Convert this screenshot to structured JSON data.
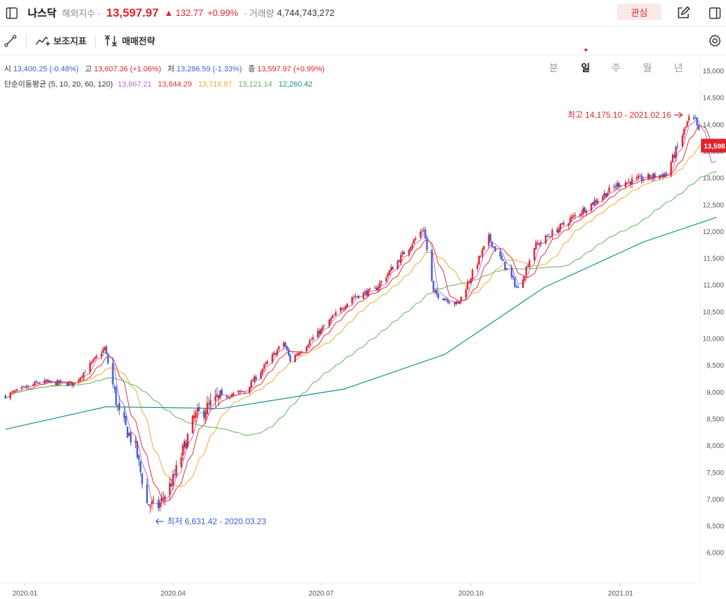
{
  "header": {
    "name": "나스닥",
    "subtitle": "해외지수 ·",
    "price": "13,597.97",
    "change": "▲ 132.77",
    "change_pct": "+0.99%",
    "volume_label": "· 거래량",
    "volume": "4,744,743,272",
    "favorite_label": "관심"
  },
  "toolbar": {
    "indicator_label": "보조지표",
    "strategy_label": "매매전략",
    "periods": [
      "분",
      "일",
      "주",
      "월",
      "년"
    ],
    "active_period": "일"
  },
  "ohlc": {
    "open_label": "시",
    "open": "13,400.25 (-0.48%)",
    "high_label": "고",
    "high": "13,607.36 (+1.06%)",
    "low_label": "저",
    "low": "13,286.59 (-1.33%)",
    "close_label": "종",
    "close": "13,597.97 (+0.99%)"
  },
  "ma": {
    "label": "단순이동평균 (5, 10, 20, 60, 120)",
    "values": [
      "13,667.21",
      "13,844.29",
      "13,718.87",
      "13,121.14",
      "12,260.42"
    ],
    "colors": [
      "#b46cd6",
      "#e0342f",
      "#f0a636",
      "#5cb55c",
      "#17918f"
    ]
  },
  "colors": {
    "up": "#e0242f",
    "down": "#3d5fd6"
  },
  "annotations": {
    "max": "최고 14,175.10 - 2021.02.16",
    "min": "최저 6,631.42 - 2020.03.23"
  },
  "current_price_tag": "13,598",
  "chart_data": {
    "type": "candlestick",
    "y_ticks": [
      "15,000",
      "14,500",
      "14,000",
      "13,500",
      "13,000",
      "12,500",
      "12,000",
      "11,500",
      "11,000",
      "10,500",
      "10,000",
      "9,500",
      "9,000",
      "8,500",
      "8,000",
      "7,500",
      "7,000",
      "6,500",
      "6,000"
    ],
    "x_ticks": [
      "2020.01",
      "2020.04",
      "2020.07",
      "2020.10",
      "2021.01"
    ],
    "ylim": [
      5600,
      15200
    ],
    "close_path": [
      {
        "d": "2019-12-20",
        "v": 8925
      },
      {
        "d": "2020-01-10",
        "v": 9180
      },
      {
        "d": "2020-01-31",
        "v": 9150
      },
      {
        "d": "2020-02-19",
        "v": 9817
      },
      {
        "d": "2020-02-28",
        "v": 8567
      },
      {
        "d": "2020-03-09",
        "v": 7950
      },
      {
        "d": "2020-03-16",
        "v": 6904
      },
      {
        "d": "2020-03-23",
        "v": 6860
      },
      {
        "d": "2020-04-01",
        "v": 7360
      },
      {
        "d": "2020-04-14",
        "v": 8515
      },
      {
        "d": "2020-04-30",
        "v": 8890
      },
      {
        "d": "2020-05-15",
        "v": 9015
      },
      {
        "d": "2020-06-08",
        "v": 9924
      },
      {
        "d": "2020-06-12",
        "v": 9588
      },
      {
        "d": "2020-07-01",
        "v": 10155
      },
      {
        "d": "2020-07-20",
        "v": 10767
      },
      {
        "d": "2020-08-03",
        "v": 10902
      },
      {
        "d": "2020-09-02",
        "v": 12056
      },
      {
        "d": "2020-09-08",
        "v": 10847
      },
      {
        "d": "2020-09-23",
        "v": 10633
      },
      {
        "d": "2020-10-12",
        "v": 11876
      },
      {
        "d": "2020-10-30",
        "v": 10911
      },
      {
        "d": "2020-11-09",
        "v": 11713
      },
      {
        "d": "2020-11-30",
        "v": 12198
      },
      {
        "d": "2020-12-31",
        "v": 12888
      },
      {
        "d": "2021-01-29",
        "v": 13070
      },
      {
        "d": "2021-02-12",
        "v": 14095
      },
      {
        "d": "2021-02-16",
        "v": 14047
      },
      {
        "d": "2021-02-25",
        "v": 13119
      },
      {
        "d": "2021-03-01",
        "v": 13598
      }
    ],
    "ma120_path": [
      {
        "d": "2019-12-20",
        "v": 8300
      },
      {
        "d": "2020-02-20",
        "v": 8720
      },
      {
        "d": "2020-05-01",
        "v": 8690
      },
      {
        "d": "2020-07-15",
        "v": 9050
      },
      {
        "d": "2020-09-15",
        "v": 9700
      },
      {
        "d": "2020-11-15",
        "v": 10950
      },
      {
        "d": "2021-01-15",
        "v": 11800
      },
      {
        "d": "2021-03-01",
        "v": 12260
      }
    ]
  }
}
